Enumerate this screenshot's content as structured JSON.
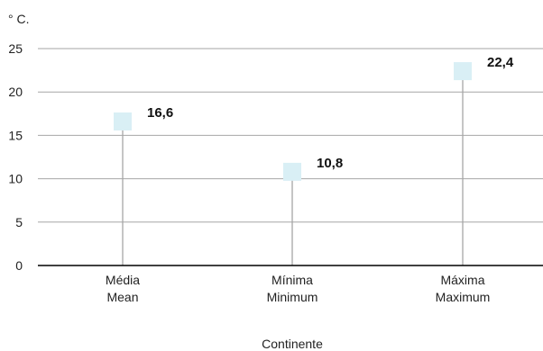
{
  "chart_data": {
    "type": "scatter",
    "title": "",
    "unit_label": "° C.",
    "xlabel": "Continente",
    "ylabel": "",
    "ylim": [
      0,
      25
    ],
    "yticks": [
      0,
      5,
      10,
      15,
      20,
      25
    ],
    "grid": true,
    "legend": "none",
    "categories": [
      {
        "line1": "Média",
        "line2": "Mean"
      },
      {
        "line1": "Mínima",
        "line2": "Minimum"
      },
      {
        "line1": "Máxima",
        "line2": "Maximum"
      }
    ],
    "values": [
      16.6,
      10.8,
      22.4
    ],
    "value_labels": [
      "16,6",
      "10,8",
      "22,4"
    ],
    "colors": {
      "marker": "#d9eff5",
      "stem": "#a6a6a6",
      "grid": "#a6a6a6",
      "axis": "#000000"
    }
  }
}
